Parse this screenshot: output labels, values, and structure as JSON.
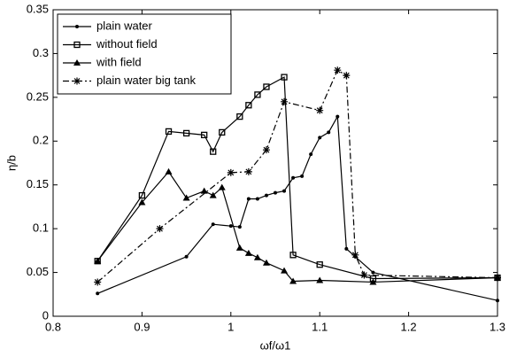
{
  "chart_data": {
    "type": "line",
    "xlabel": "ωf/ω1",
    "ylabel": "η/b",
    "xlim": [
      0.8,
      1.3
    ],
    "xticks": [
      0.8,
      0.9,
      1,
      1.1,
      1.2,
      1.3
    ],
    "ylim": [
      0,
      0.35
    ],
    "yticks": [
      0,
      0.05,
      0.1,
      0.15,
      0.2,
      0.25,
      0.3,
      0.35
    ],
    "grid": false,
    "legend": "upper left",
    "series": [
      {
        "name": "plain water",
        "color": "#000000",
        "marker": "dot",
        "linestyle": "solid",
        "x": [
          0.85,
          0.95,
          0.98,
          1.0,
          1.01,
          1.02,
          1.03,
          1.04,
          1.05,
          1.06,
          1.07,
          1.08,
          1.09,
          1.1,
          1.11,
          1.12,
          1.13,
          1.14,
          1.16,
          1.3
        ],
        "values": [
          0.026,
          0.068,
          0.105,
          0.103,
          0.102,
          0.134,
          0.134,
          0.138,
          0.141,
          0.143,
          0.158,
          0.16,
          0.185,
          0.204,
          0.21,
          0.228,
          0.077,
          0.068,
          0.05,
          0.018
        ]
      },
      {
        "name": "without field",
        "color": "#000000",
        "marker": "square",
        "linestyle": "solid",
        "x": [
          0.85,
          0.9,
          0.93,
          0.95,
          0.97,
          0.98,
          0.99,
          1.01,
          1.02,
          1.03,
          1.04,
          1.06,
          1.07,
          1.1,
          1.16,
          1.3
        ],
        "values": [
          0.063,
          0.138,
          0.211,
          0.209,
          0.207,
          0.188,
          0.21,
          0.228,
          0.241,
          0.253,
          0.262,
          0.273,
          0.07,
          0.059,
          0.043,
          0.044
        ]
      },
      {
        "name": "with field",
        "color": "#000000",
        "marker": "triangle",
        "linestyle": "solid",
        "x": [
          0.85,
          0.9,
          0.93,
          0.95,
          0.97,
          0.98,
          0.99,
          1.01,
          1.02,
          1.03,
          1.04,
          1.06,
          1.07,
          1.1,
          1.16,
          1.3
        ],
        "values": [
          0.063,
          0.13,
          0.165,
          0.135,
          0.143,
          0.138,
          0.147,
          0.078,
          0.072,
          0.067,
          0.061,
          0.052,
          0.04,
          0.041,
          0.039,
          0.044
        ]
      },
      {
        "name": "plain water big tank",
        "color": "#000000",
        "marker": "asterisk",
        "linestyle": "dashdot",
        "x": [
          0.85,
          0.92,
          1.0,
          1.02,
          1.04,
          1.06,
          1.1,
          1.12,
          1.13,
          1.14,
          1.15,
          1.3
        ],
        "values": [
          0.039,
          0.1,
          0.164,
          0.165,
          0.19,
          0.245,
          0.235,
          0.281,
          0.275,
          0.07,
          0.047,
          0.044
        ]
      }
    ]
  }
}
